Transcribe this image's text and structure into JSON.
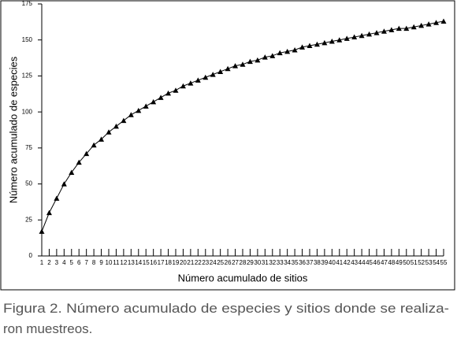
{
  "chart_data": {
    "type": "line",
    "xlabel": "Número acumulado de sitios",
    "ylabel": "Número acumulado de especies",
    "x": [
      1,
      2,
      3,
      4,
      5,
      6,
      7,
      8,
      9,
      10,
      11,
      12,
      13,
      14,
      15,
      16,
      17,
      18,
      19,
      20,
      21,
      22,
      23,
      24,
      25,
      26,
      27,
      28,
      29,
      30,
      31,
      32,
      33,
      34,
      35,
      36,
      37,
      38,
      39,
      40,
      41,
      42,
      43,
      44,
      45,
      46,
      47,
      48,
      49,
      50,
      51,
      52,
      53,
      54,
      55
    ],
    "values": [
      17,
      30,
      40,
      50,
      58,
      65,
      71,
      77,
      81,
      86,
      90,
      94,
      98,
      101,
      104,
      107,
      110,
      113,
      115,
      118,
      120,
      122,
      124,
      126,
      128,
      130,
      132,
      133,
      135,
      136,
      138,
      139,
      141,
      142,
      143,
      145,
      146,
      147,
      148,
      149,
      150,
      151,
      152,
      153,
      154,
      155,
      156,
      157,
      158,
      158,
      159,
      160,
      161,
      162,
      163
    ],
    "color": "#000000",
    "xlim": [
      1,
      55
    ],
    "xticks": [
      1,
      2,
      3,
      4,
      5,
      6,
      7,
      8,
      9,
      10,
      11,
      12,
      13,
      14,
      15,
      16,
      17,
      18,
      19,
      20,
      21,
      22,
      23,
      24,
      25,
      26,
      27,
      28,
      29,
      30,
      31,
      32,
      33,
      34,
      35,
      36,
      37,
      38,
      39,
      40,
      41,
      42,
      43,
      44,
      45,
      46,
      47,
      48,
      49,
      50,
      51,
      52,
      53,
      54,
      55
    ],
    "ylim": [
      0,
      175
    ],
    "yticks": [
      0,
      25,
      50,
      75,
      100,
      125,
      150,
      175
    ]
  },
  "caption": [
    "Figura 2. Número acumulado de especies y sitios donde se realiza-",
    "ron muestreos."
  ]
}
